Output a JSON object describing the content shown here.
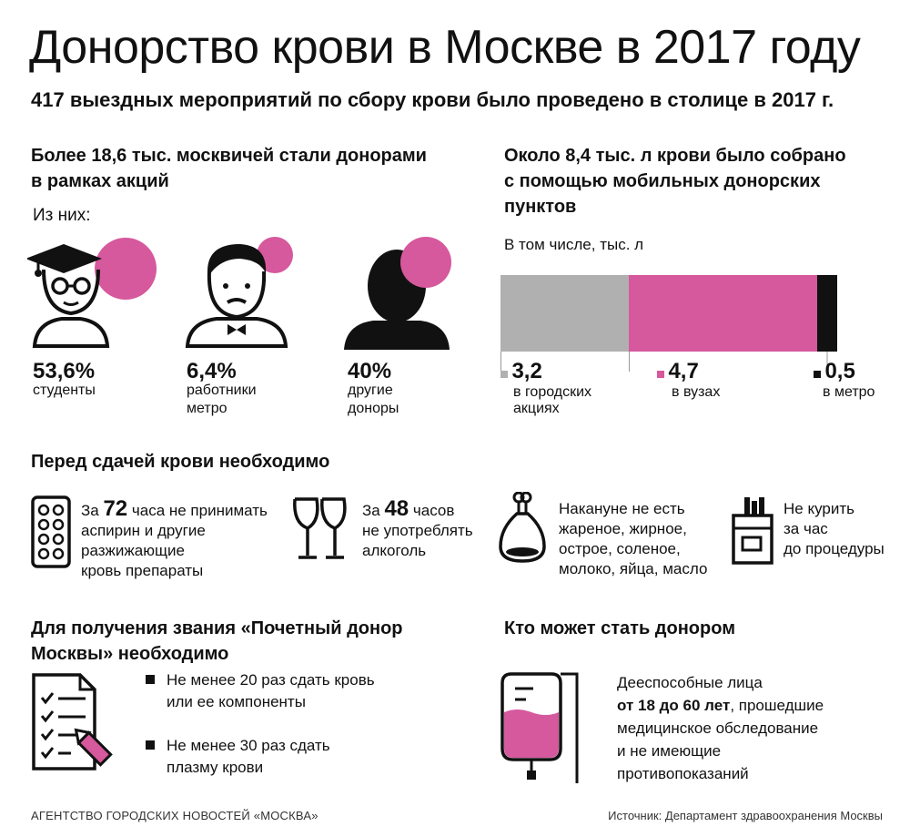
{
  "header": {
    "title": "Донорство крови в Москве в 2017 году",
    "subtitle": "417 выездных мероприятий по сбору крови было проведено в столице в 2017 г."
  },
  "donors": {
    "heading_line1": "Более 18,6 тыс. москвичей стали донорами",
    "heading_line2": "в рамках акций",
    "of_them": "Из них:",
    "groups": [
      {
        "pct": "53,6%",
        "label_1": "студенты",
        "label_2": "",
        "icon": "student-icon",
        "value": 53.6
      },
      {
        "pct": "6,4%",
        "label_1": "работники",
        "label_2": "метро",
        "icon": "metro-worker-icon",
        "value": 6.4
      },
      {
        "pct": "40%",
        "label_1": "другие",
        "label_2": "доноры",
        "icon": "other-donor-icon",
        "value": 40
      }
    ]
  },
  "blood": {
    "heading_line1": "Около 8,4 тыс. л крови было собрано",
    "heading_line2": "с помощью мобильных донорских",
    "heading_line3": "пунктов",
    "unit_caption": "В том числе, тыс. л"
  },
  "chart_data": {
    "type": "bar",
    "orientation": "horizontal-stacked",
    "title": "",
    "unit": "тыс. л",
    "total": 8.4,
    "series": [
      {
        "name": "в городских акциях",
        "value": 3.2,
        "label": "3,2",
        "color": "#b0b0b0"
      },
      {
        "name": "в вузах",
        "value": 4.7,
        "label": "4,7",
        "color": "#d6589d"
      },
      {
        "name": "в метро",
        "value": 0.5,
        "label": "0,5",
        "color": "#111111"
      }
    ],
    "labels": {
      "s1_line1": "в городских",
      "s1_line2": "акциях",
      "s2": "в вузах",
      "s3": "в метро"
    }
  },
  "before": {
    "heading": "Перед сдачей крови необходимо",
    "items": [
      {
        "pre": "За ",
        "num": "72",
        "post": " часа не принимать",
        "l2": "аспирин и другие",
        "l3": "разжижающие",
        "l4": "кровь препараты",
        "icon": "pills-icon"
      },
      {
        "pre": "За ",
        "num": "48",
        "post": " часов",
        "l2": "не употреблять",
        "l3": "алкоголь",
        "icon": "wine-glasses-icon"
      },
      {
        "l1": "Накануне не есть",
        "l2": "жареное, жирное,",
        "l3": "острое, соленое,",
        "l4": "молоко, яйца, масло",
        "icon": "chicken-leg-icon"
      },
      {
        "l1": "Не курить",
        "l2": "за час",
        "l3": "до процедуры",
        "icon": "cigarettes-icon"
      }
    ]
  },
  "honorary": {
    "heading_line1": "Для получения звания «Почетный донор",
    "heading_line2": "Москвы» необходимо",
    "items": [
      {
        "l1": "Не менее 20 раз сдать кровь",
        "l2": "или ее компоненты"
      },
      {
        "l1": "Не менее 30 раз сдать",
        "l2": "плазму крови"
      }
    ]
  },
  "who": {
    "heading": "Кто может стать донором",
    "l1": "Дееспособные лица",
    "l2_bold": "от 18 до 60 лет",
    "l2_rest": ", прошедшие",
    "l3": "медицинское обследование",
    "l4": "и не имеющие",
    "l5": "противопоказаний"
  },
  "footer": {
    "agency": "АГЕНТСТВО ГОРОДСКИХ НОВОСТЕЙ «МОСКВА»",
    "source": "Источник: Департамент здравоохранения Москвы"
  },
  "colors": {
    "accent": "#d6589d",
    "gray": "#b0b0b0",
    "black": "#111111"
  }
}
